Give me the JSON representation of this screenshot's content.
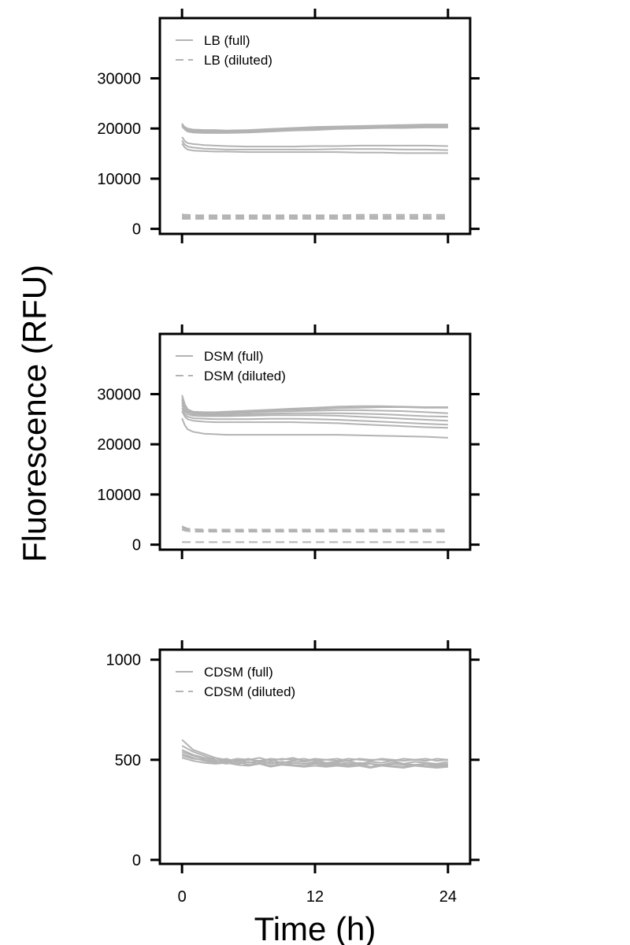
{
  "figure": {
    "ylabel": "Fluorescence (RFU)",
    "xlabel": "Time (h)",
    "x_ticks": [
      "0",
      "12",
      "24"
    ]
  },
  "chart_data": [
    {
      "type": "line",
      "title": "",
      "xlabel": "Time (h)",
      "ylabel": "Fluorescence (RFU)",
      "xlim": [
        -2,
        26
      ],
      "ylim": [
        -1000,
        42000
      ],
      "x_ticks": [
        0,
        12,
        24
      ],
      "y_ticks": [
        0,
        10000,
        20000,
        30000
      ],
      "grid": false,
      "legend_position": "top-left",
      "legend": [
        {
          "label": "LB (full)",
          "style": "solid"
        },
        {
          "label": "LB (diluted)",
          "style": "dashed"
        }
      ],
      "color": "#b3b3b3",
      "x": [
        0,
        0.25,
        0.5,
        1,
        2,
        3,
        4,
        6,
        8,
        10,
        12,
        14,
        16,
        18,
        20,
        22,
        24
      ],
      "series": [
        {
          "group": "full",
          "style": "solid",
          "values": [
            21000,
            20200,
            19700,
            19500,
            19500,
            19400,
            19300,
            19500,
            19700,
            19900,
            20000,
            20100,
            20200,
            20300,
            20400,
            20400,
            20500
          ]
        },
        {
          "group": "full",
          "style": "solid",
          "values": [
            20800,
            20000,
            19600,
            19300,
            19200,
            19200,
            19200,
            19300,
            19500,
            19700,
            19900,
            20000,
            20100,
            20200,
            20200,
            20300,
            20300
          ]
        },
        {
          "group": "full",
          "style": "solid",
          "values": [
            20600,
            20100,
            19800,
            19600,
            19600,
            19500,
            19500,
            19600,
            19800,
            20000,
            20100,
            20300,
            20400,
            20500,
            20600,
            20600,
            20700
          ]
        },
        {
          "group": "full",
          "style": "solid",
          "values": [
            20400,
            19800,
            19400,
            19200,
            19100,
            19100,
            19100,
            19200,
            19400,
            19600,
            19700,
            19900,
            20000,
            20100,
            20100,
            20200,
            20200
          ]
        },
        {
          "group": "full",
          "style": "solid",
          "values": [
            20700,
            20300,
            20000,
            19800,
            19700,
            19700,
            19600,
            19700,
            19900,
            20100,
            20300,
            20400,
            20500,
            20600,
            20700,
            20800,
            20800
          ]
        },
        {
          "group": "full",
          "style": "solid",
          "values": [
            18300,
            17500,
            17100,
            16900,
            16700,
            16600,
            16500,
            16400,
            16400,
            16400,
            16500,
            16500,
            16600,
            16600,
            16600,
            16600,
            16500
          ]
        },
        {
          "group": "full",
          "style": "solid",
          "values": [
            17600,
            16800,
            16400,
            16200,
            16000,
            15900,
            15800,
            15800,
            15800,
            15800,
            15800,
            15900,
            15900,
            15900,
            15800,
            15800,
            15700
          ]
        },
        {
          "group": "full",
          "style": "solid",
          "values": [
            17000,
            16200,
            15800,
            15600,
            15500,
            15400,
            15400,
            15300,
            15300,
            15300,
            15300,
            15300,
            15200,
            15200,
            15100,
            15100,
            15100
          ]
        },
        {
          "group": "diluted",
          "style": "dashed",
          "values": [
            2900,
            2800,
            2800,
            2700,
            2700,
            2700,
            2700,
            2700,
            2700,
            2700,
            2700,
            2700,
            2800,
            2800,
            2800,
            2800,
            2800
          ]
        },
        {
          "group": "diluted",
          "style": "dashed",
          "values": [
            2600,
            2500,
            2500,
            2500,
            2500,
            2500,
            2500,
            2500,
            2500,
            2500,
            2500,
            2500,
            2500,
            2500,
            2500,
            2500,
            2500
          ]
        },
        {
          "group": "diluted",
          "style": "dashed",
          "values": [
            2300,
            2200,
            2200,
            2200,
            2200,
            2200,
            2200,
            2200,
            2200,
            2200,
            2200,
            2200,
            2200,
            2200,
            2200,
            2200,
            2200
          ]
        },
        {
          "group": "diluted",
          "style": "dashed",
          "values": [
            2000,
            2000,
            2000,
            2000,
            2000,
            2000,
            2000,
            2000,
            2000,
            2000,
            2000,
            2000,
            2000,
            2000,
            2000,
            2000,
            2000
          ]
        }
      ]
    },
    {
      "type": "line",
      "title": "",
      "xlabel": "Time (h)",
      "ylabel": "Fluorescence (RFU)",
      "xlim": [
        -2,
        26
      ],
      "ylim": [
        -1000,
        42000
      ],
      "x_ticks": [
        0,
        12,
        24
      ],
      "y_ticks": [
        0,
        10000,
        20000,
        30000
      ],
      "grid": false,
      "legend_position": "top-left",
      "legend": [
        {
          "label": "DSM (full)",
          "style": "solid"
        },
        {
          "label": "DSM (diluted)",
          "style": "dashed"
        }
      ],
      "color": "#b3b3b3",
      "x": [
        0,
        0.25,
        0.5,
        1,
        2,
        3,
        4,
        6,
        8,
        10,
        12,
        14,
        16,
        18,
        20,
        22,
        24
      ],
      "series": [
        {
          "group": "full",
          "style": "solid",
          "values": [
            29800,
            28000,
            27000,
            26500,
            26400,
            26400,
            26500,
            26700,
            26900,
            27100,
            27300,
            27500,
            27600,
            27600,
            27500,
            27400,
            27400
          ]
        },
        {
          "group": "full",
          "style": "solid",
          "values": [
            29200,
            27600,
            26800,
            26300,
            26200,
            26200,
            26300,
            26500,
            26700,
            26900,
            27000,
            27200,
            27300,
            27400,
            27400,
            27300,
            27300
          ]
        },
        {
          "group": "full",
          "style": "solid",
          "values": [
            28800,
            27300,
            26600,
            26200,
            26100,
            26100,
            26200,
            26300,
            26500,
            26600,
            26700,
            26800,
            26800,
            26700,
            26600,
            26400,
            26200
          ]
        },
        {
          "group": "full",
          "style": "solid",
          "values": [
            28300,
            27000,
            26400,
            26000,
            25900,
            25900,
            25900,
            26000,
            26100,
            26200,
            26200,
            26200,
            26100,
            26000,
            25800,
            25600,
            25500
          ]
        },
        {
          "group": "full",
          "style": "solid",
          "values": [
            27800,
            26600,
            26000,
            25700,
            25600,
            25600,
            25600,
            25700,
            25800,
            25800,
            25800,
            25700,
            25500,
            25300,
            25100,
            24900,
            24700
          ]
        },
        {
          "group": "full",
          "style": "solid",
          "values": [
            27200,
            26000,
            25500,
            25200,
            25100,
            25000,
            25000,
            25000,
            25100,
            25100,
            25000,
            24900,
            24700,
            24500,
            24300,
            24100,
            23900
          ]
        },
        {
          "group": "full",
          "style": "solid",
          "values": [
            26600,
            25500,
            25000,
            24700,
            24500,
            24400,
            24400,
            24400,
            24400,
            24400,
            24300,
            24200,
            24000,
            23800,
            23600,
            23400,
            23300
          ]
        },
        {
          "group": "full",
          "style": "solid",
          "values": [
            25200,
            23800,
            23000,
            22500,
            22100,
            22000,
            21900,
            21900,
            21900,
            21900,
            21900,
            21900,
            21800,
            21700,
            21600,
            21500,
            21300
          ]
        },
        {
          "group": "diluted",
          "style": "dashed",
          "values": [
            3700,
            3400,
            3200,
            3100,
            3000,
            3000,
            3000,
            3000,
            3000,
            3000,
            3000,
            3000,
            3000,
            3000,
            3000,
            3000,
            3000
          ]
        },
        {
          "group": "diluted",
          "style": "dashed",
          "values": [
            3400,
            3100,
            3000,
            2900,
            2800,
            2800,
            2800,
            2800,
            2800,
            2800,
            2800,
            2800,
            2800,
            2800,
            2800,
            2800,
            2800
          ]
        },
        {
          "group": "diluted",
          "style": "dashed",
          "values": [
            3000,
            2800,
            2700,
            2600,
            2600,
            2600,
            2600,
            2600,
            2600,
            2600,
            2600,
            2600,
            2600,
            2600,
            2600,
            2600,
            2600
          ]
        },
        {
          "group": "diluted",
          "style": "dashed",
          "values": [
            500,
            500,
            500,
            500,
            500,
            500,
            500,
            500,
            500,
            500,
            500,
            500,
            500,
            500,
            500,
            500,
            500
          ]
        }
      ]
    },
    {
      "type": "line",
      "title": "",
      "xlabel": "Time (h)",
      "ylabel": "Fluorescence (RFU)",
      "xlim": [
        -2,
        26
      ],
      "ylim": [
        -20,
        1050
      ],
      "x_ticks": [
        0,
        12,
        24
      ],
      "y_ticks": [
        0,
        500,
        1000
      ],
      "grid": false,
      "legend_position": "top-left",
      "legend": [
        {
          "label": "CDSM (full)",
          "style": "solid"
        },
        {
          "label": "CDSM (diluted)",
          "style": "dashed"
        }
      ],
      "color": "#b3b3b3",
      "x": [
        0,
        1,
        2,
        3,
        4,
        5,
        6,
        7,
        8,
        9,
        10,
        11,
        12,
        13,
        14,
        15,
        16,
        17,
        18,
        19,
        20,
        21,
        22,
        23,
        24
      ],
      "series": [
        {
          "group": "full",
          "style": "solid",
          "values": [
            600,
            550,
            530,
            510,
            500,
            495,
            505,
            490,
            500,
            485,
            495,
            490,
            500,
            485,
            490,
            495,
            480,
            490,
            485,
            495,
            480,
            490,
            485,
            480,
            490
          ]
        },
        {
          "group": "full",
          "style": "solid",
          "values": [
            570,
            540,
            520,
            500,
            490,
            500,
            485,
            495,
            480,
            490,
            485,
            480,
            490,
            480,
            485,
            475,
            485,
            480,
            475,
            485,
            480,
            475,
            480,
            475,
            480
          ]
        },
        {
          "group": "full",
          "style": "solid",
          "values": [
            550,
            525,
            510,
            495,
            505,
            490,
            500,
            495,
            505,
            500,
            510,
            495,
            505,
            500,
            495,
            505,
            500,
            495,
            505,
            500,
            495,
            500,
            505,
            495,
            500
          ]
        },
        {
          "group": "full",
          "style": "solid",
          "values": [
            540,
            520,
            505,
            510,
            495,
            505,
            500,
            510,
            495,
            505,
            500,
            505,
            495,
            500,
            505,
            495,
            505,
            500,
            500,
            495,
            505,
            500,
            495,
            505,
            500
          ]
        },
        {
          "group": "full",
          "style": "solid",
          "values": [
            530,
            510,
            495,
            485,
            495,
            480,
            490,
            480,
            490,
            475,
            485,
            480,
            485,
            475,
            480,
            485,
            475,
            480,
            470,
            480,
            475,
            470,
            480,
            470,
            475
          ]
        },
        {
          "group": "full",
          "style": "solid",
          "values": [
            520,
            505,
            500,
            490,
            480,
            490,
            475,
            485,
            470,
            480,
            475,
            470,
            480,
            470,
            475,
            470,
            480,
            465,
            475,
            470,
            465,
            475,
            470,
            465,
            470
          ]
        },
        {
          "group": "full",
          "style": "solid",
          "values": [
            510,
            495,
            485,
            480,
            485,
            475,
            470,
            480,
            465,
            475,
            470,
            465,
            470,
            465,
            470,
            465,
            470,
            460,
            470,
            465,
            460,
            470,
            465,
            460,
            465
          ]
        }
      ]
    }
  ]
}
